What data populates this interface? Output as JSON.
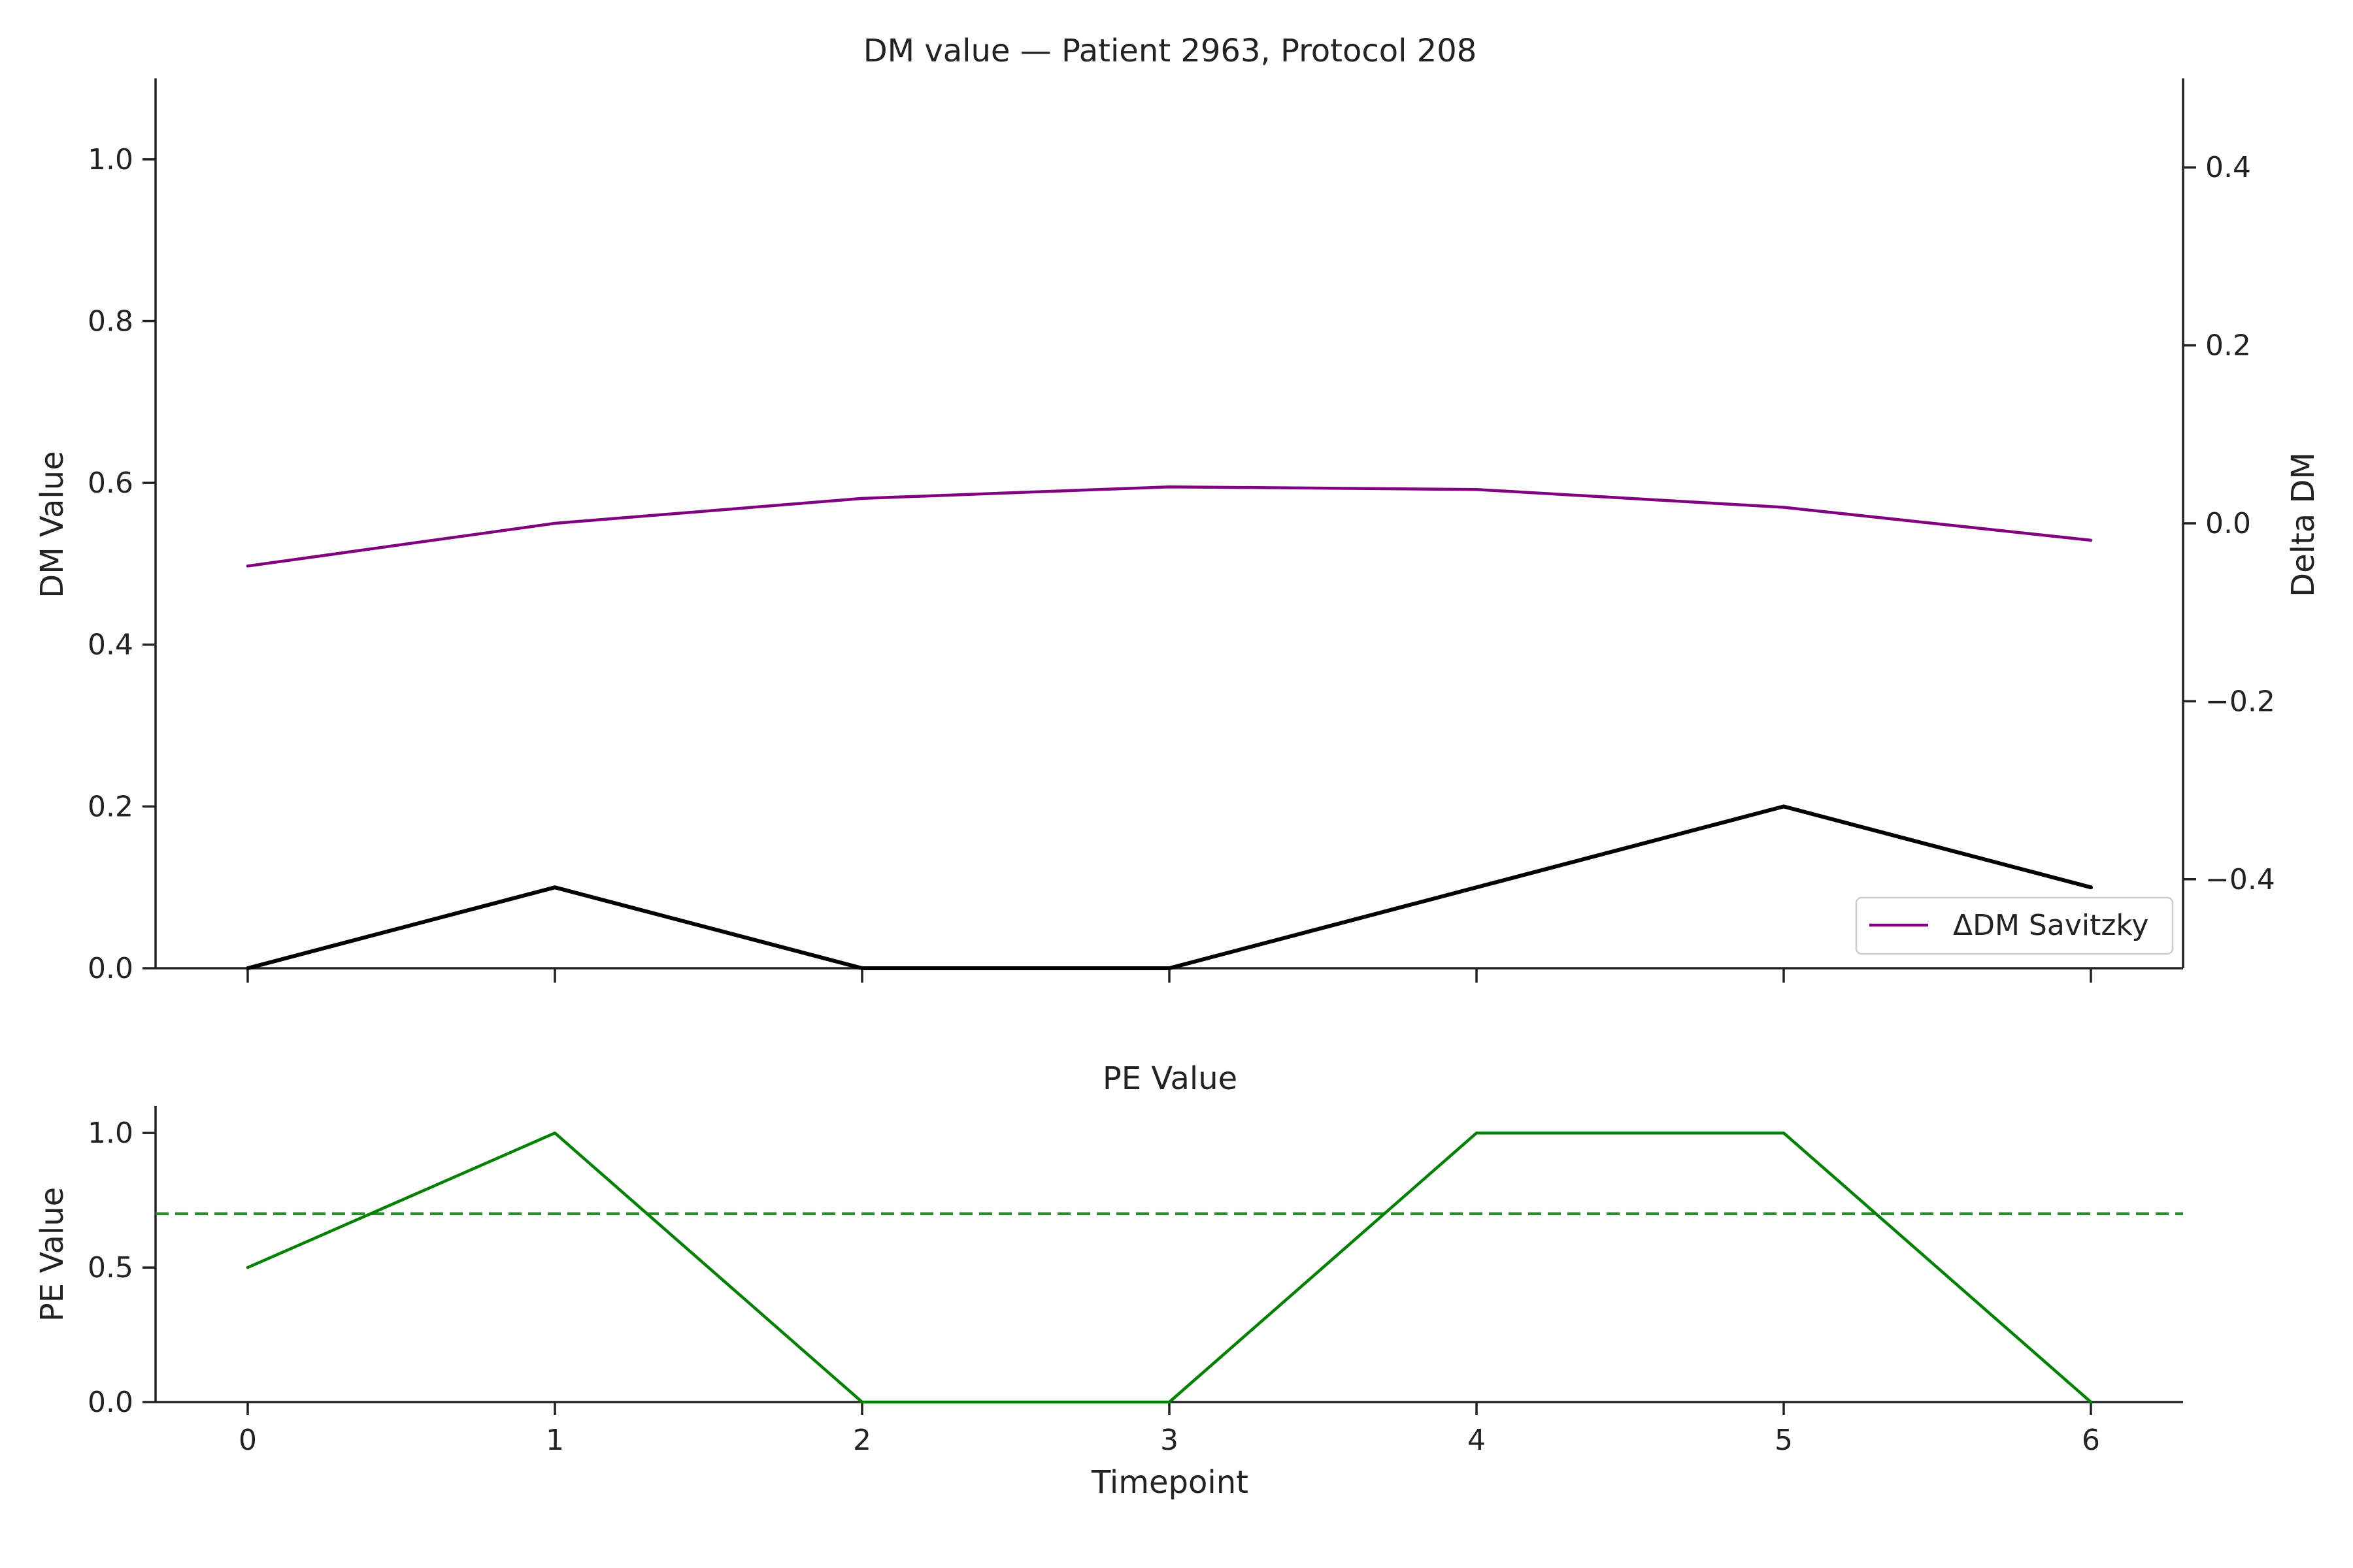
{
  "chart_data": [
    {
      "type": "line",
      "title": "DM value — Patient 2963, Protocol 208",
      "xlabel": "",
      "ylabel": "DM Value",
      "y2label": "Delta DM",
      "x": [
        0,
        1,
        2,
        3,
        4,
        5,
        6
      ],
      "xlim": [
        -0.3,
        6.3
      ],
      "ylim": [
        0,
        1.1
      ],
      "y2lim": [
        -0.5,
        0.5
      ],
      "yticks": [
        "0.0",
        "0.2",
        "0.4",
        "0.6",
        "0.8",
        "1.0"
      ],
      "y2ticks": [
        "−0.4",
        "−0.2",
        "0.0",
        "0.2",
        "0.4"
      ],
      "y2tick_values": [
        -0.4,
        -0.2,
        0.0,
        0.2,
        0.4
      ],
      "grid": false,
      "legend_placement": "lower-right",
      "series": [
        {
          "axis": "left",
          "color": "#000000",
          "values": [
            0.0,
            0.1,
            0.0,
            0.0,
            0.1,
            0.2,
            0.1
          ]
        },
        {
          "name": "ΔDM Savitzky",
          "axis": "right",
          "color": "#800080",
          "values": [
            -0.048,
            0.0,
            0.028,
            0.041,
            0.038,
            0.018,
            -0.019
          ]
        }
      ]
    },
    {
      "type": "line",
      "title": "PE Value",
      "xlabel": "Timepoint",
      "ylabel": "PE Value",
      "x": [
        0,
        1,
        2,
        3,
        4,
        5,
        6
      ],
      "xticks": [
        "0",
        "1",
        "2",
        "3",
        "4",
        "5",
        "6"
      ],
      "xlim": [
        -0.3,
        6.3
      ],
      "ylim": [
        0,
        1.1
      ],
      "yticks": [
        "0.0",
        "0.5",
        "1.0"
      ],
      "grid": false,
      "series": [
        {
          "color": "#008000",
          "values": [
            0.5,
            1.0,
            0.0,
            0.0,
            1.0,
            1.0,
            0.0
          ]
        }
      ],
      "threshold": {
        "value": 0.7,
        "color": "#2e8b2e",
        "style": "dashed"
      }
    }
  ]
}
